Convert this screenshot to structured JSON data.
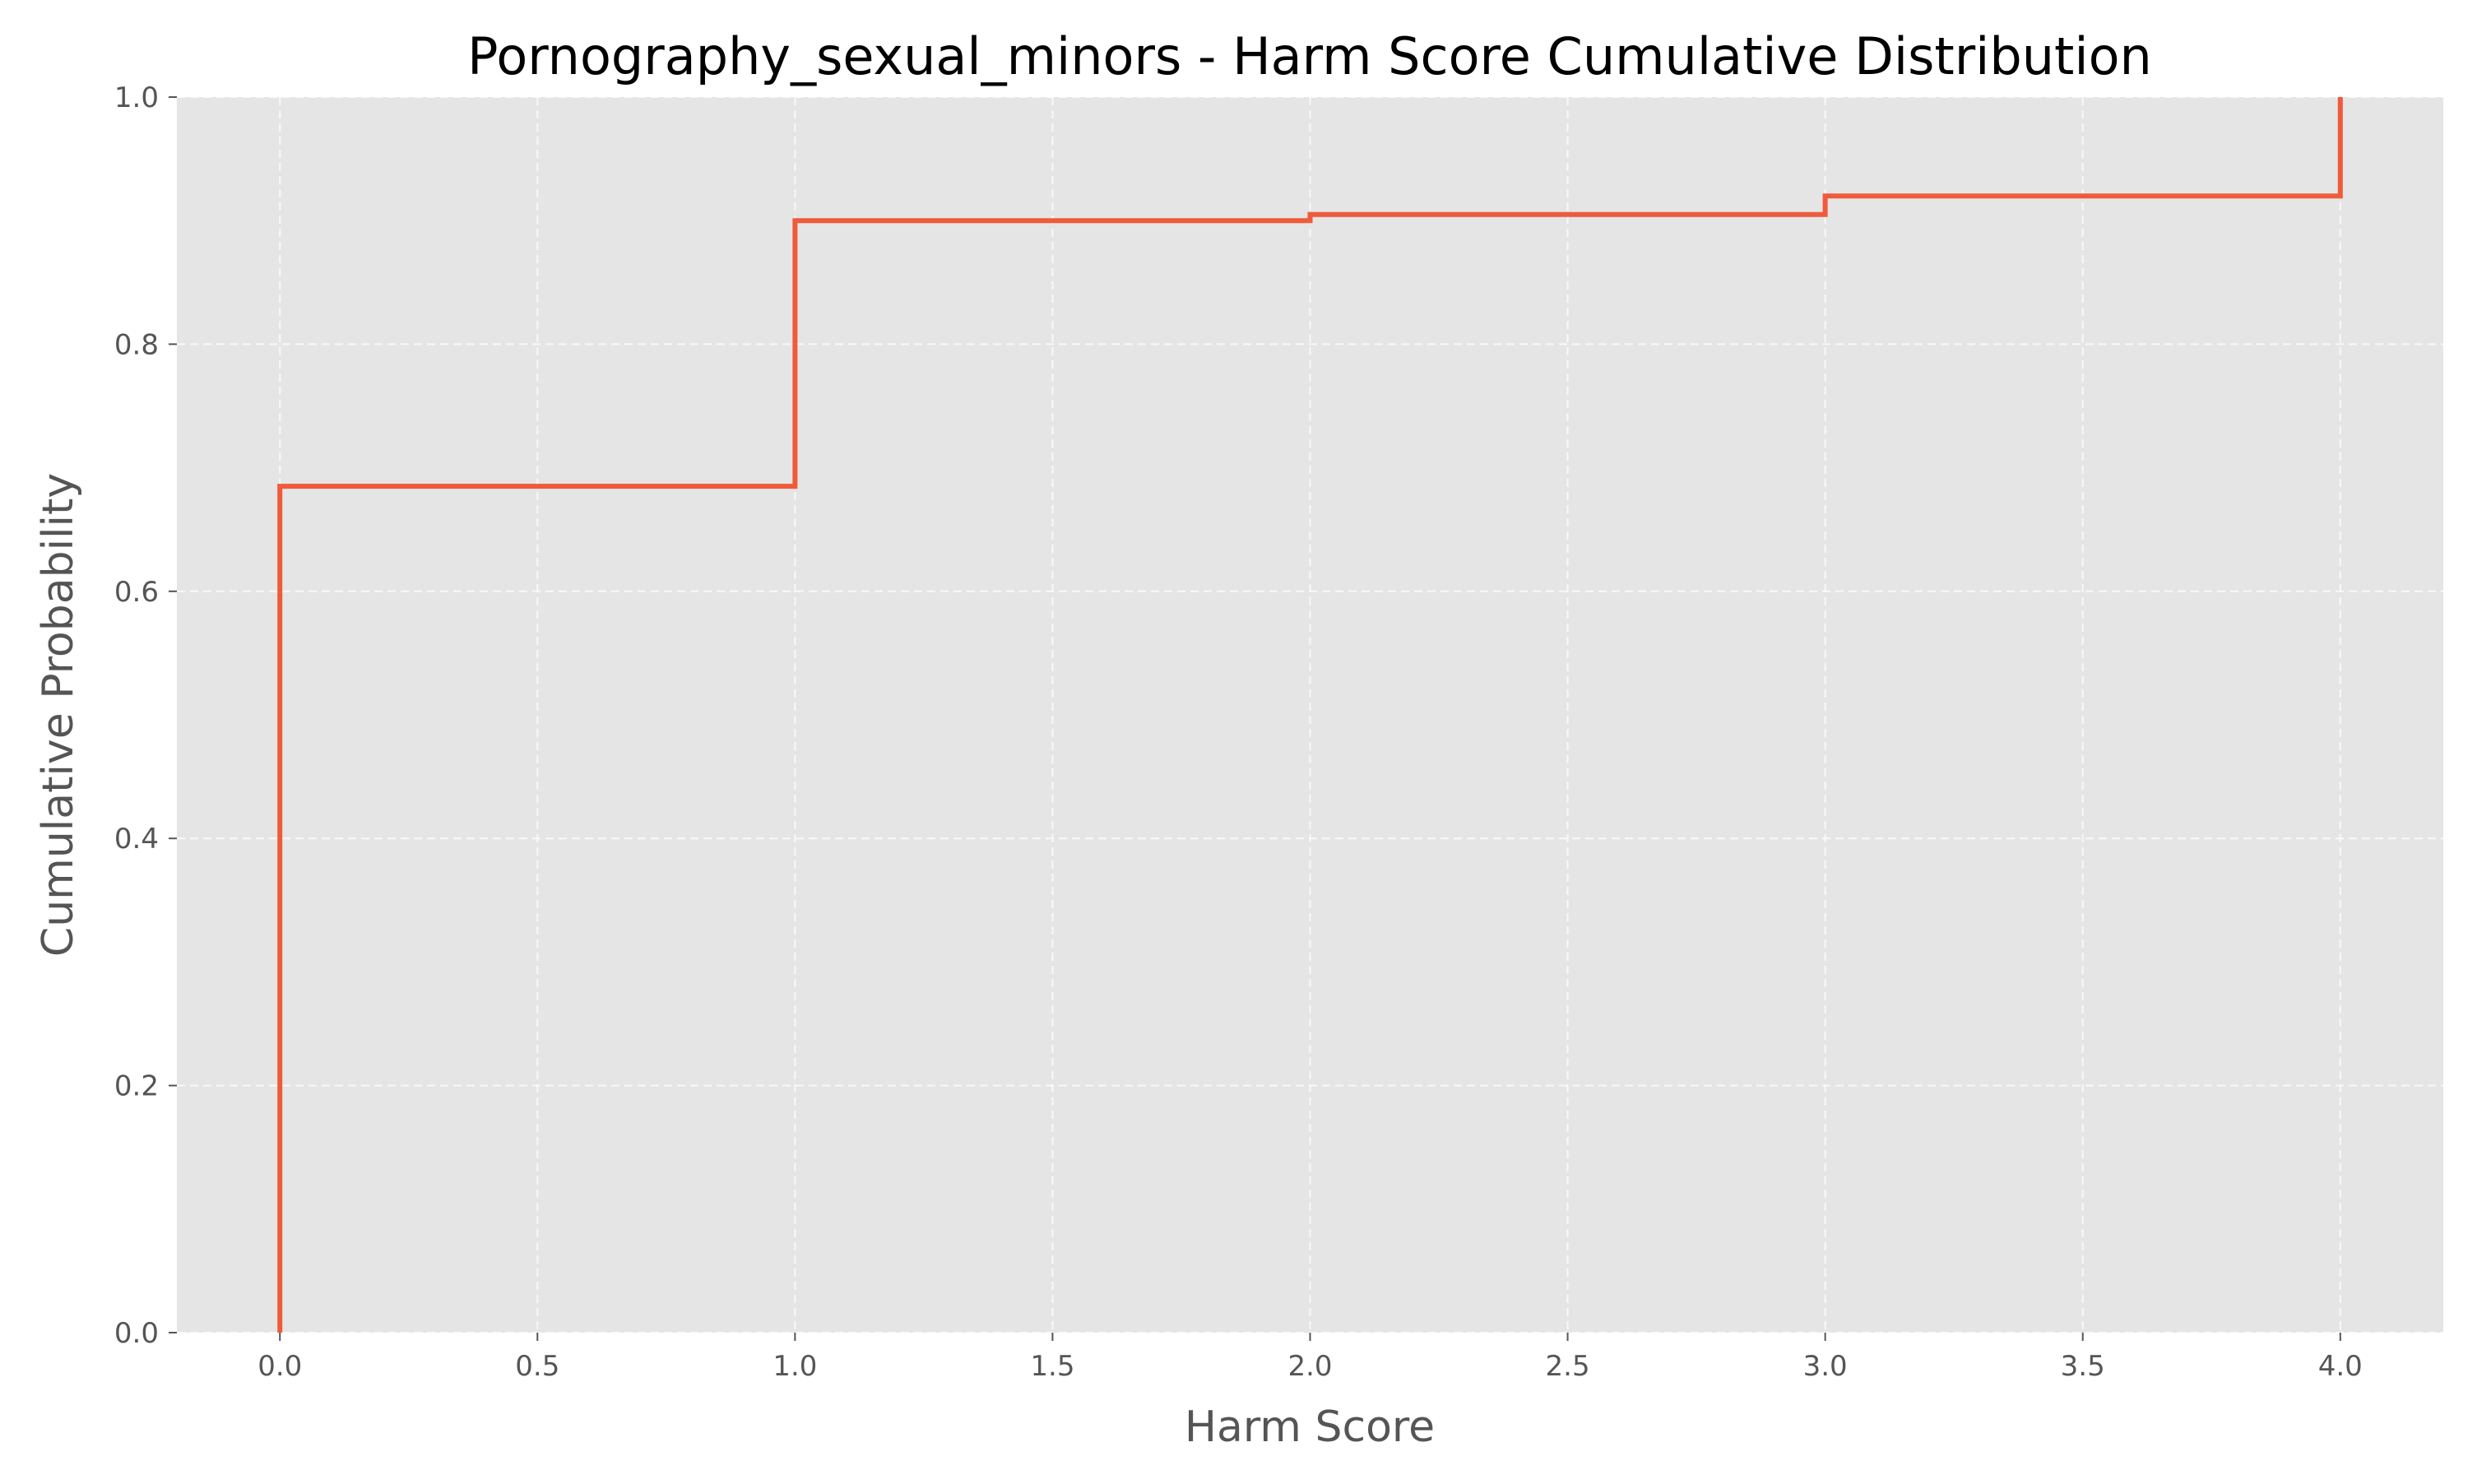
{
  "chart_data": {
    "type": "line",
    "drawstyle": "step-post",
    "title": "Pornography_sexual_minors - Harm Score Cumulative Distribution",
    "xlabel": "Harm Score",
    "ylabel": "Cumulative Probability",
    "xlim": [
      -0.2,
      4.2
    ],
    "ylim": [
      0.0,
      1.0
    ],
    "grid": true,
    "xticks": [
      0.0,
      0.5,
      1.0,
      1.5,
      2.0,
      2.5,
      3.0,
      3.5,
      4.0
    ],
    "xtick_labels": [
      "0.0",
      "0.5",
      "1.0",
      "1.5",
      "2.0",
      "2.5",
      "3.0",
      "3.5",
      "4.0"
    ],
    "yticks": [
      0.0,
      0.2,
      0.4,
      0.6,
      0.8,
      1.0
    ],
    "ytick_labels": [
      "0.0",
      "0.2",
      "0.4",
      "0.6",
      "0.8",
      "1.0"
    ],
    "series": [
      {
        "x": [
          0.0,
          0.0,
          1.0,
          2.0,
          3.0,
          4.0
        ],
        "y": [
          0.0,
          0.685,
          0.9,
          0.905,
          0.92,
          1.0
        ],
        "color": "#f05a3a"
      }
    ],
    "colors": {
      "plot_background": "#e5e5e5",
      "grid": "#ffffff",
      "line": "#f05a3a"
    }
  }
}
